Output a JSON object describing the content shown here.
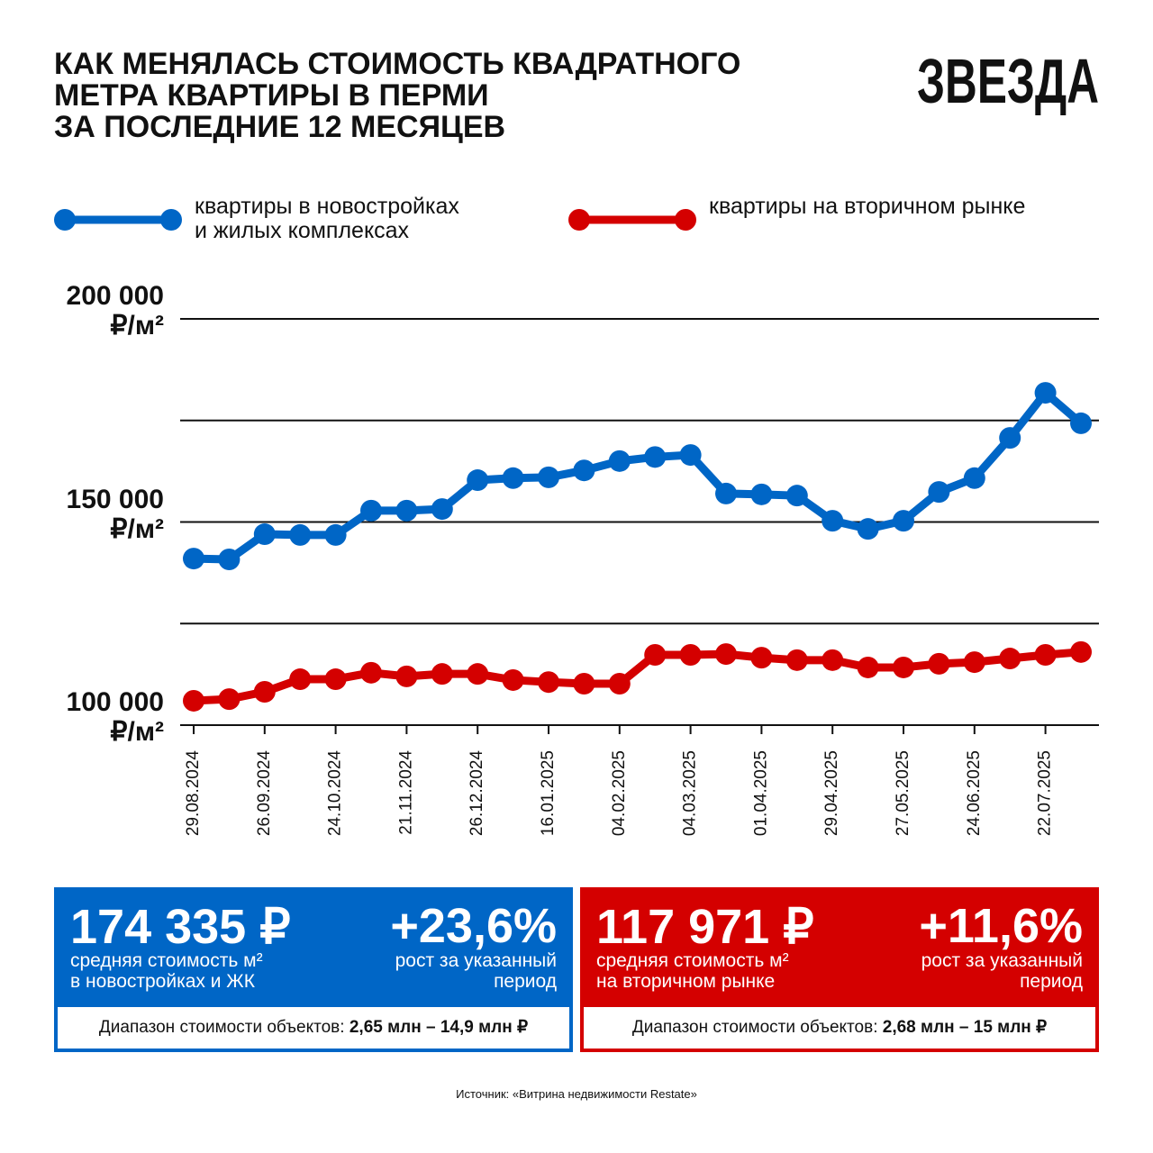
{
  "header": {
    "title": "КАК МЕНЯЛАСЬ СТОИМОСТЬ КВАДРАТНОГО\nМЕТРА КВАРТИРЫ В ПЕРМИ\nЗА ПОСЛЕДНИЕ 12 МЕСЯЦЕВ",
    "logo": "ЗВЕЗДА"
  },
  "chart_data": {
    "type": "line",
    "categories": [
      "29.08.2024",
      null,
      "26.09.2024",
      null,
      "24.10.2024",
      null,
      "21.11.2024",
      null,
      "26.12.2024",
      null,
      "16.01.2025",
      null,
      "04.02.2025",
      null,
      "04.03.2025",
      null,
      "01.04.2025",
      null,
      "29.04.2025",
      null,
      "27.05.2025",
      null,
      "24.06.2025",
      null,
      "22.07.2025",
      null
    ],
    "series": [
      {
        "name": "квартиры в новостройках\nи жилых комплексах",
        "color": "#0066c6",
        "values": [
          141000,
          140800,
          147000,
          146800,
          146800,
          152800,
          152800,
          153200,
          160300,
          160800,
          161000,
          162700,
          165000,
          166000,
          166500,
          157000,
          156800,
          156500,
          150300,
          148300,
          150300,
          157400,
          160800,
          170700,
          181800,
          174300
        ]
      },
      {
        "name": "квартиры на вторичном рынке",
        "color": "#d40000",
        "values": [
          106000,
          106400,
          108200,
          111300,
          111300,
          112900,
          112000,
          112600,
          112600,
          111100,
          110600,
          110200,
          110200,
          117300,
          117300,
          117500,
          116600,
          116000,
          116000,
          114200,
          114200,
          115100,
          115500,
          116400,
          117300,
          118000
        ]
      }
    ],
    "ylim": [
      100000,
      200000
    ],
    "yticks": [
      {
        "value": 100000,
        "label": "100 000\n₽/м²"
      },
      {
        "value": 150000,
        "label": "150 000\n₽/м²"
      },
      {
        "value": 200000,
        "label": "200 000\n₽/м²"
      }
    ],
    "minor_yticks": [
      125000,
      175000
    ],
    "grid": true
  },
  "cards": [
    {
      "price": "174 335 ₽",
      "price_caption": "средняя стоимость м²\nв новостройках и ЖК",
      "growth": "+23,6%",
      "growth_caption": "рост за указанный\nпериод",
      "range_label": "Диапазон стоимости объектов:",
      "range_value": "2,65 млн – 14,9 млн ₽"
    },
    {
      "price": "117 971 ₽",
      "price_caption": "средняя стоимость м²\nна вторичном рынке",
      "growth": "+11,6%",
      "growth_caption": "рост за указанный\nпериод",
      "range_label": "Диапазон стоимости объектов:",
      "range_value": "2,68 млн – 15 млн ₽"
    }
  ],
  "source": "Источник: «Витрина недвижимости Restate»"
}
